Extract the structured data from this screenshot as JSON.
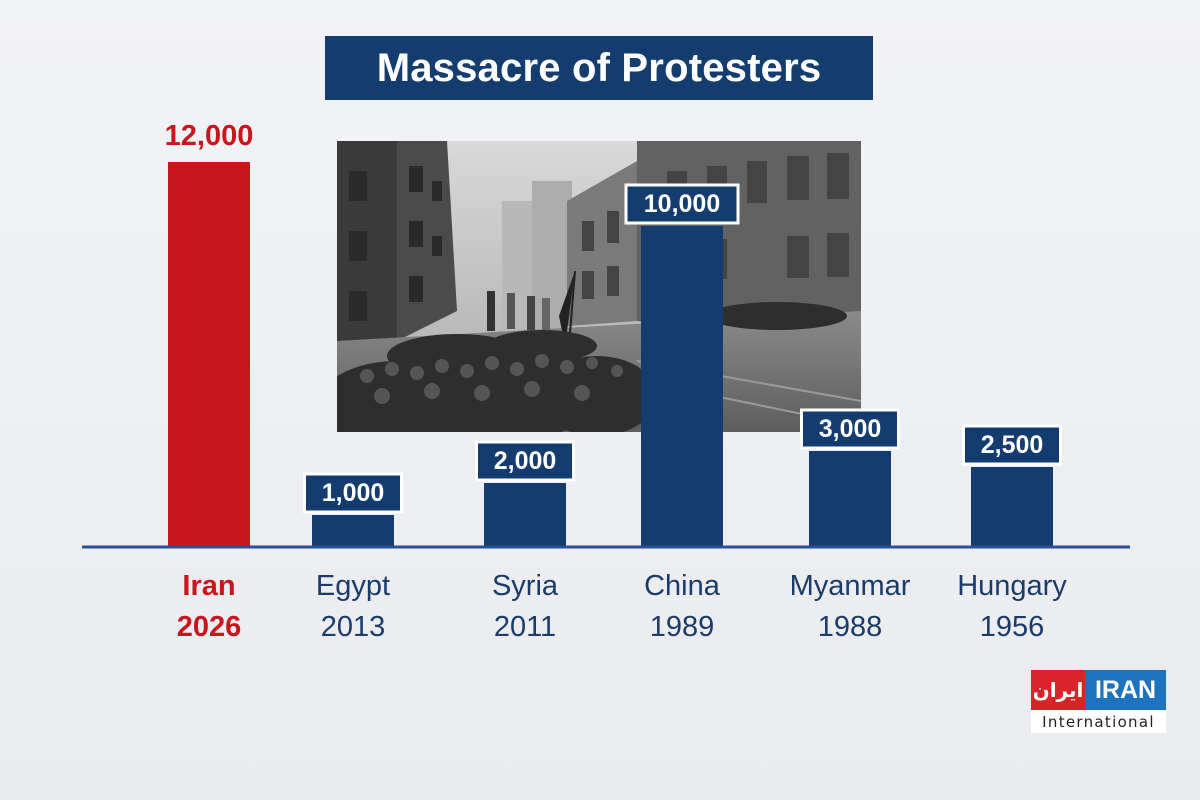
{
  "title": "Massacre of Protesters",
  "colors": {
    "highlight": "#c8161c",
    "bar": "#143c6e",
    "label_text": "#1a3c6b",
    "baseline": "#2a4f9a"
  },
  "photo": {
    "icon": "protest-crowd-photo"
  },
  "logo": {
    "farsi": "ایران",
    "english": "IRAN",
    "subtitle": "International"
  },
  "chart_data": {
    "type": "bar",
    "title": "Massacre of Protesters",
    "categories": [
      "Iran 2026",
      "Egypt 2013",
      "Syria 2011",
      "China 1989",
      "Myanmar 1988",
      "Hungary 1956"
    ],
    "countries": [
      "Iran",
      "Egypt",
      "Syria",
      "China",
      "Myanmar",
      "Hungary"
    ],
    "years": [
      "2026",
      "2013",
      "2011",
      "1989",
      "1988",
      "1956"
    ],
    "values": [
      12000,
      1000,
      2000,
      10000,
      3000,
      2500
    ],
    "value_labels": [
      "12,000",
      "1,000",
      "2,000",
      "10,000",
      "3,000",
      "2,500"
    ],
    "highlight_index": 0,
    "xlabel": "",
    "ylabel": "",
    "grid": false,
    "legend": false
  }
}
